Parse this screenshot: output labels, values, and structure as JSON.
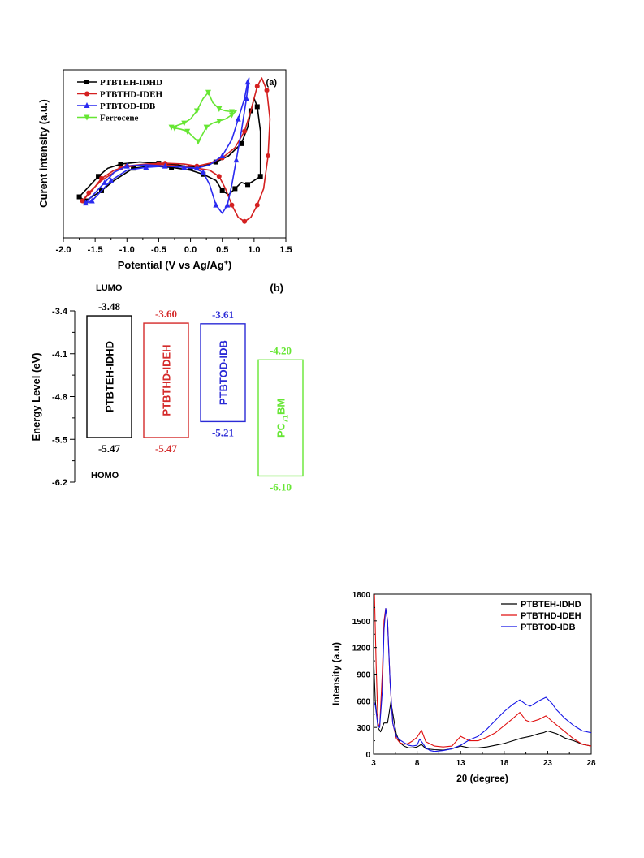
{
  "chart_data": [
    {
      "panel_label": "(a)",
      "type": "line",
      "xlabel_main": "Potential (V vs Ag/Ag",
      "xlabel_sup": "+",
      "xlabel_end": ")",
      "ylabel": "Curent intensity (a.u.)",
      "xlim": [
        -2.0,
        1.5
      ],
      "xticks": [
        -2.0,
        -1.5,
        -1.0,
        -0.5,
        0.0,
        0.5,
        1.0,
        1.5
      ],
      "xtick_labels": [
        "-2.0",
        "-1.5",
        "-1.0",
        "-0.5",
        "0.0",
        "0.5",
        "1.0",
        "1.5"
      ],
      "ylim": [
        -1.6,
        2.5
      ],
      "legend_position": "top-left",
      "series": [
        {
          "name": "PTBTEH-IDHD",
          "color": "#000000",
          "marker": "square",
          "x": [
            -1.75,
            -1.6,
            -1.45,
            -1.3,
            -1.1,
            -0.8,
            -0.5,
            -0.2,
            0.0,
            0.2,
            0.4,
            0.6,
            0.8,
            0.9,
            0.95,
            1.0,
            1.05,
            1.1,
            1.1,
            1.0,
            0.9,
            0.8,
            0.7,
            0.6,
            0.5,
            0.4,
            0.2,
            0.0,
            -0.3,
            -0.6,
            -0.9,
            -1.2,
            -1.4,
            -1.55,
            -1.65,
            -1.75
          ],
          "y": [
            -0.6,
            -0.35,
            -0.1,
            0.1,
            0.2,
            0.25,
            0.22,
            0.18,
            0.12,
            0.15,
            0.25,
            0.4,
            0.7,
            1.1,
            1.5,
            1.8,
            1.6,
            1.0,
            -0.1,
            -0.2,
            -0.3,
            -0.25,
            -0.4,
            -0.55,
            -0.45,
            -0.2,
            -0.05,
            0.05,
            0.12,
            0.15,
            0.1,
            -0.2,
            -0.45,
            -0.6,
            -0.7,
            -0.6
          ]
        },
        {
          "name": "PTBTHD-IDEH",
          "color": "#d42020",
          "marker": "circle",
          "x": [
            -1.7,
            -1.55,
            -1.4,
            -1.2,
            -1.0,
            -0.7,
            -0.4,
            -0.1,
            0.1,
            0.3,
            0.5,
            0.7,
            0.85,
            0.95,
            1.05,
            1.12,
            1.2,
            1.25,
            1.22,
            1.15,
            1.05,
            0.95,
            0.85,
            0.75,
            0.65,
            0.55,
            0.45,
            0.3,
            0.1,
            -0.2,
            -0.5,
            -0.8,
            -1.1,
            -1.4,
            -1.6,
            -1.7
          ],
          "y": [
            -0.7,
            -0.45,
            -0.15,
            0.05,
            0.15,
            0.2,
            0.22,
            0.2,
            0.15,
            0.22,
            0.35,
            0.6,
            1.0,
            1.5,
            2.1,
            2.3,
            2.0,
            1.3,
            0.4,
            -0.4,
            -0.8,
            -1.1,
            -1.2,
            -1.1,
            -0.8,
            -0.4,
            -0.1,
            0.05,
            0.1,
            0.15,
            0.2,
            0.18,
            0.1,
            -0.2,
            -0.5,
            -0.7
          ]
        },
        {
          "name": "PTBTOD-IDB",
          "color": "#2a2af0",
          "marker": "triangle",
          "x": [
            -1.65,
            -1.5,
            -1.35,
            -1.2,
            -1.0,
            -0.7,
            -0.4,
            -0.1,
            0.1,
            0.3,
            0.5,
            0.65,
            0.75,
            0.85,
            0.9,
            0.92,
            0.88,
            0.8,
            0.72,
            0.65,
            0.58,
            0.5,
            0.4,
            0.3,
            0.2,
            0.05,
            -0.1,
            -0.4,
            -0.7,
            -1.0,
            -1.25,
            -1.4,
            -1.55,
            -1.65
          ],
          "y": [
            -0.75,
            -0.5,
            -0.25,
            0.0,
            0.15,
            0.18,
            0.15,
            0.12,
            0.1,
            0.18,
            0.4,
            0.8,
            1.3,
            1.8,
            2.2,
            2.3,
            1.8,
            1.0,
            0.3,
            -0.3,
            -0.8,
            -1.0,
            -0.8,
            -0.3,
            0.0,
            0.1,
            0.12,
            0.15,
            0.12,
            0.05,
            -0.2,
            -0.45,
            -0.7,
            -0.75
          ]
        },
        {
          "name": "Ferrocene",
          "color": "#66e633",
          "marker": "triangle-down",
          "x": [
            -0.3,
            -0.2,
            -0.1,
            0.0,
            0.1,
            0.2,
            0.28,
            0.35,
            0.45,
            0.55,
            0.65,
            0.72,
            0.65,
            0.55,
            0.45,
            0.35,
            0.25,
            0.18,
            0.12,
            0.05,
            -0.05,
            -0.15,
            -0.25,
            -0.3
          ],
          "y": [
            1.1,
            1.15,
            1.2,
            1.3,
            1.5,
            1.8,
            1.95,
            1.7,
            1.55,
            1.5,
            1.48,
            1.5,
            1.4,
            1.3,
            1.25,
            1.2,
            1.1,
            0.9,
            0.75,
            0.85,
            1.0,
            1.05,
            1.08,
            1.1
          ]
        }
      ]
    },
    {
      "panel_label": "(b)",
      "type": "bar",
      "ylabel": "Energy Level (eV)",
      "ylim": [
        -6.2,
        -3.4
      ],
      "yticks": [
        -3.4,
        -4.1,
        -4.8,
        -5.5,
        -6.2
      ],
      "ytick_labels": [
        "-3.4",
        "-4.1",
        "-4.8",
        "-5.5",
        "-6.2"
      ],
      "lumo_label": "LUMO",
      "homo_label": "HOMO",
      "materials": [
        {
          "name": "PTBTEH-IDHD",
          "lumo": -3.48,
          "homo": -5.47,
          "lumo_label": "-3.48",
          "homo_label": "-5.47",
          "color": "#000000"
        },
        {
          "name": "PTBTHD-IDEH",
          "lumo": -3.6,
          "homo": -5.47,
          "lumo_label": "-3.60",
          "homo_label": "-5.47",
          "color": "#d42a2a"
        },
        {
          "name": "PTBTOD-IDB",
          "lumo": -3.61,
          "homo": -5.21,
          "lumo_label": "-3.61",
          "homo_label": "-5.21",
          "color": "#2b2bd6"
        },
        {
          "name_prefix": "PC",
          "name_sub": "71",
          "name_suffix": "BM",
          "lumo": -4.2,
          "homo": -6.1,
          "lumo_label": "-4.20",
          "homo_label": "-6.10",
          "color": "#66e633"
        }
      ]
    },
    {
      "type": "line",
      "xlabel": "2θ (degree)",
      "ylabel": "Intensity (a.u)",
      "xlim": [
        3,
        28
      ],
      "xticks": [
        3,
        8,
        13,
        18,
        23,
        28
      ],
      "ylim": [
        0,
        1800
      ],
      "yticks": [
        0,
        300,
        600,
        900,
        1200,
        1500,
        1800
      ],
      "legend_position": "top-right",
      "series": [
        {
          "name": "PTBTEH-IDHD",
          "color": "#000000",
          "x": [
            3.0,
            3.2,
            3.5,
            3.8,
            4.2,
            4.6,
            5.0,
            5.3,
            5.6,
            6.0,
            6.5,
            7.0,
            7.5,
            8.0,
            8.5,
            9.0,
            10,
            11,
            12,
            13,
            14,
            15,
            16,
            17,
            18,
            19,
            20,
            21,
            22,
            22.5,
            23,
            24,
            25,
            26,
            27,
            28
          ],
          "y": [
            1100,
            600,
            300,
            250,
            350,
            350,
            590,
            400,
            230,
            130,
            90,
            70,
            70,
            80,
            110,
            60,
            50,
            45,
            60,
            90,
            70,
            70,
            80,
            100,
            120,
            150,
            180,
            200,
            230,
            240,
            260,
            230,
            180,
            150,
            110,
            90
          ]
        },
        {
          "name": "PTBTHD-IDEH",
          "color": "#e01010",
          "x": [
            3.0,
            3.1,
            3.3,
            3.5,
            3.7,
            4.0,
            4.2,
            4.4,
            4.6,
            4.9,
            5.2,
            5.6,
            6.0,
            6.5,
            7.0,
            7.5,
            8.0,
            8.5,
            9.0,
            10,
            11,
            12,
            13,
            14,
            15,
            16,
            17,
            18,
            19,
            19.8,
            20.5,
            21,
            22,
            22.8,
            23.5,
            24,
            25,
            26,
            27,
            28
          ],
          "y": [
            1800,
            1800,
            1000,
            350,
            300,
            900,
            1500,
            1640,
            1500,
            800,
            350,
            180,
            130,
            110,
            120,
            150,
            190,
            270,
            140,
            90,
            80,
            90,
            200,
            150,
            150,
            190,
            240,
            320,
            400,
            470,
            380,
            360,
            390,
            430,
            370,
            330,
            250,
            170,
            110,
            90
          ]
        },
        {
          "name": "PTBTOD-IDB",
          "color": "#1414e6",
          "x": [
            3.0,
            3.2,
            3.5,
            3.7,
            4.0,
            4.2,
            4.4,
            4.6,
            4.9,
            5.2,
            5.6,
            6.0,
            6.5,
            7.0,
            7.5,
            8.0,
            8.3,
            8.6,
            9.0,
            9.5,
            10,
            11,
            12,
            13,
            14,
            15,
            16,
            17,
            18,
            19,
            19.8,
            20.5,
            21,
            22,
            22.8,
            23.5,
            24,
            25,
            26,
            27,
            28
          ],
          "y": [
            600,
            550,
            320,
            300,
            700,
            1400,
            1640,
            1500,
            800,
            350,
            200,
            160,
            130,
            100,
            90,
            100,
            170,
            130,
            70,
            40,
            30,
            40,
            60,
            100,
            160,
            200,
            280,
            380,
            480,
            560,
            610,
            560,
            540,
            600,
            640,
            570,
            500,
            400,
            320,
            260,
            240
          ]
        }
      ]
    }
  ]
}
